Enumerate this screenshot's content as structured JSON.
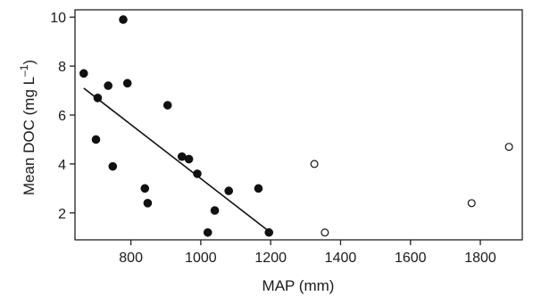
{
  "chart_data": {
    "type": "scatter",
    "title": "",
    "xlabel": "MAP (mm)",
    "ylabel_main": "Mean DOC (mg L",
    "ylabel_sup": "–1",
    "ylabel_close": ")",
    "xlim": [
      640,
      1920
    ],
    "ylim": [
      0.9,
      10.3
    ],
    "x_ticks": [
      800,
      1000,
      1200,
      1400,
      1600,
      1800
    ],
    "y_ticks": [
      2,
      4,
      6,
      8,
      10
    ],
    "grid": false,
    "series": [
      {
        "marker": "filled-circle",
        "color": "#111111",
        "points": [
          [
            665,
            7.7
          ],
          [
            700,
            5.0
          ],
          [
            705,
            6.7
          ],
          [
            735,
            7.2
          ],
          [
            748,
            3.9
          ],
          [
            778,
            9.9
          ],
          [
            790,
            7.3
          ],
          [
            840,
            3.0
          ],
          [
            848,
            2.4
          ],
          [
            905,
            6.4
          ],
          [
            946,
            4.3
          ],
          [
            966,
            4.2
          ],
          [
            990,
            3.6
          ],
          [
            1020,
            1.2
          ],
          [
            1040,
            2.1
          ],
          [
            1080,
            2.9
          ],
          [
            1165,
            3.0
          ],
          [
            1195,
            1.2
          ]
        ]
      },
      {
        "marker": "open-circle",
        "color": "#111111",
        "points": [
          [
            1325,
            4.0
          ],
          [
            1355,
            1.2
          ],
          [
            1775,
            2.4
          ],
          [
            1882,
            4.7
          ]
        ]
      }
    ],
    "regression_line": {
      "x": [
        665,
        1195
      ],
      "y": [
        7.1,
        1.25
      ]
    }
  }
}
